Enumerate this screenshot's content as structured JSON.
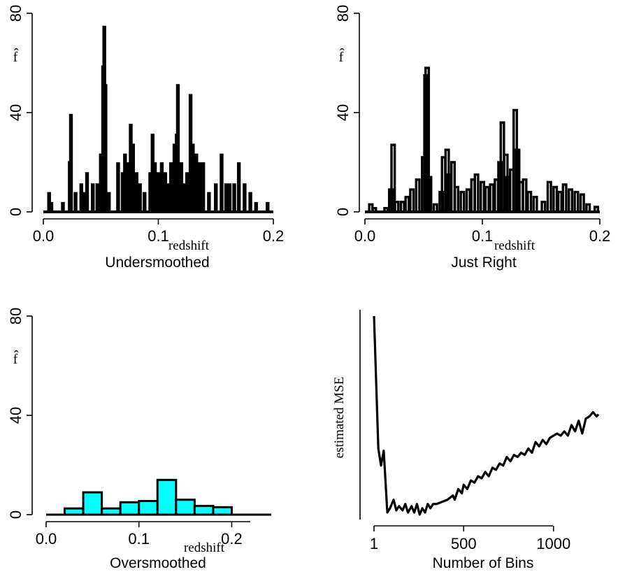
{
  "chart_data": [
    {
      "type": "histogram",
      "title": "Undersmoothed",
      "xlabel": "redshift",
      "ylabel": "f̂",
      "xlim": [
        0.0,
        0.2
      ],
      "ylim": [
        0,
        80
      ],
      "xticks": [
        "0.0",
        "0.1",
        "0.2"
      ],
      "yticks": [
        "0",
        "40",
        "80"
      ],
      "bins": 308,
      "peaks": [
        {
          "x": 0.005,
          "y": 7.5
        },
        {
          "x": 0.007,
          "y": 3.5
        },
        {
          "x": 0.017,
          "y": 3.5
        },
        {
          "x": 0.023,
          "y": 20
        },
        {
          "x": 0.024,
          "y": 39
        },
        {
          "x": 0.028,
          "y": 7.5
        },
        {
          "x": 0.033,
          "y": 11
        },
        {
          "x": 0.036,
          "y": 7.5
        },
        {
          "x": 0.038,
          "y": 15.5
        },
        {
          "x": 0.043,
          "y": 11
        },
        {
          "x": 0.047,
          "y": 11
        },
        {
          "x": 0.05,
          "y": 23
        },
        {
          "x": 0.052,
          "y": 58.5
        },
        {
          "x": 0.053,
          "y": 74.5
        },
        {
          "x": 0.054,
          "y": 51
        },
        {
          "x": 0.057,
          "y": 7.5
        },
        {
          "x": 0.065,
          "y": 19.5
        },
        {
          "x": 0.069,
          "y": 15.5
        },
        {
          "x": 0.071,
          "y": 23
        },
        {
          "x": 0.074,
          "y": 19.5
        },
        {
          "x": 0.076,
          "y": 35
        },
        {
          "x": 0.078,
          "y": 27
        },
        {
          "x": 0.081,
          "y": 15.5
        },
        {
          "x": 0.084,
          "y": 11
        },
        {
          "x": 0.088,
          "y": 7.5
        },
        {
          "x": 0.093,
          "y": 15.5
        },
        {
          "x": 0.095,
          "y": 31
        },
        {
          "x": 0.097,
          "y": 19.5
        },
        {
          "x": 0.1,
          "y": 15.5
        },
        {
          "x": 0.103,
          "y": 19.5
        },
        {
          "x": 0.106,
          "y": 15.5
        },
        {
          "x": 0.108,
          "y": 11
        },
        {
          "x": 0.111,
          "y": 19.5
        },
        {
          "x": 0.114,
          "y": 27
        },
        {
          "x": 0.116,
          "y": 31
        },
        {
          "x": 0.117,
          "y": 51
        },
        {
          "x": 0.12,
          "y": 19.5
        },
        {
          "x": 0.123,
          "y": 11
        },
        {
          "x": 0.125,
          "y": 15.5
        },
        {
          "x": 0.128,
          "y": 47
        },
        {
          "x": 0.13,
          "y": 27
        },
        {
          "x": 0.133,
          "y": 23
        },
        {
          "x": 0.136,
          "y": 19.5
        },
        {
          "x": 0.139,
          "y": 19.5
        },
        {
          "x": 0.144,
          "y": 7.5
        },
        {
          "x": 0.15,
          "y": 11
        },
        {
          "x": 0.155,
          "y": 23
        },
        {
          "x": 0.159,
          "y": 11
        },
        {
          "x": 0.162,
          "y": 11
        },
        {
          "x": 0.166,
          "y": 11
        },
        {
          "x": 0.17,
          "y": 19.5
        },
        {
          "x": 0.175,
          "y": 11
        },
        {
          "x": 0.18,
          "y": 7.5
        },
        {
          "x": 0.185,
          "y": 3.5
        },
        {
          "x": 0.195,
          "y": 3.5
        }
      ]
    },
    {
      "type": "histogram",
      "title": "Just Right",
      "xlabel": "redshift",
      "ylabel": "f̂",
      "xlim": [
        0.0,
        0.2
      ],
      "ylim": [
        0,
        80
      ],
      "xticks": [
        "0.0",
        "0.1",
        "0.2"
      ],
      "yticks": [
        "0",
        "40",
        "80"
      ],
      "bins": 73,
      "peaks": [
        {
          "x": 0.005,
          "y": 3
        },
        {
          "x": 0.008,
          "y": 1.5
        },
        {
          "x": 0.018,
          "y": 1.5
        },
        {
          "x": 0.022,
          "y": 9
        },
        {
          "x": 0.024,
          "y": 27
        },
        {
          "x": 0.027,
          "y": 4
        },
        {
          "x": 0.032,
          "y": 4
        },
        {
          "x": 0.036,
          "y": 6
        },
        {
          "x": 0.04,
          "y": 9
        },
        {
          "x": 0.045,
          "y": 13
        },
        {
          "x": 0.05,
          "y": 22
        },
        {
          "x": 0.052,
          "y": 55
        },
        {
          "x": 0.053,
          "y": 58
        },
        {
          "x": 0.055,
          "y": 14
        },
        {
          "x": 0.06,
          "y": 3
        },
        {
          "x": 0.065,
          "y": 8
        },
        {
          "x": 0.067,
          "y": 22
        },
        {
          "x": 0.07,
          "y": 25
        },
        {
          "x": 0.072,
          "y": 15
        },
        {
          "x": 0.075,
          "y": 20
        },
        {
          "x": 0.078,
          "y": 10
        },
        {
          "x": 0.083,
          "y": 8
        },
        {
          "x": 0.088,
          "y": 9
        },
        {
          "x": 0.092,
          "y": 13
        },
        {
          "x": 0.095,
          "y": 15
        },
        {
          "x": 0.1,
          "y": 12
        },
        {
          "x": 0.104,
          "y": 10
        },
        {
          "x": 0.108,
          "y": 11
        },
        {
          "x": 0.112,
          "y": 13
        },
        {
          "x": 0.115,
          "y": 20
        },
        {
          "x": 0.117,
          "y": 36
        },
        {
          "x": 0.12,
          "y": 23
        },
        {
          "x": 0.122,
          "y": 14
        },
        {
          "x": 0.125,
          "y": 17
        },
        {
          "x": 0.128,
          "y": 41
        },
        {
          "x": 0.13,
          "y": 25
        },
        {
          "x": 0.133,
          "y": 12
        },
        {
          "x": 0.136,
          "y": 13
        },
        {
          "x": 0.14,
          "y": 8
        },
        {
          "x": 0.145,
          "y": 6
        },
        {
          "x": 0.152,
          "y": 4
        },
        {
          "x": 0.157,
          "y": 12
        },
        {
          "x": 0.162,
          "y": 10
        },
        {
          "x": 0.166,
          "y": 8
        },
        {
          "x": 0.17,
          "y": 11
        },
        {
          "x": 0.175,
          "y": 9
        },
        {
          "x": 0.18,
          "y": 8
        },
        {
          "x": 0.185,
          "y": 7
        },
        {
          "x": 0.19,
          "y": 3
        },
        {
          "x": 0.197,
          "y": 2
        }
      ]
    },
    {
      "type": "bar",
      "title": "Oversmoothed",
      "xlabel": "redshift",
      "ylabel": "f̂",
      "xlim": [
        0.0,
        0.22
      ],
      "ylim": [
        0,
        80
      ],
      "xticks": [
        "0.0",
        "0.1",
        "0.2"
      ],
      "yticks": [
        "0",
        "40",
        "80"
      ],
      "bar_color": "#00ffff",
      "bin_edges": [
        0.0,
        0.02,
        0.04,
        0.06,
        0.08,
        0.1,
        0.12,
        0.14,
        0.16,
        0.18,
        0.2,
        0.22
      ],
      "values": [
        0,
        2.5,
        9,
        2.5,
        5,
        5.5,
        14,
        6,
        3.5,
        3,
        0
      ]
    },
    {
      "type": "line",
      "title": "",
      "xlabel": "Number of Bins",
      "ylabel": "estimated MSE",
      "xticks": [
        "1",
        "500",
        "1000"
      ],
      "xlim": [
        1,
        1250
      ],
      "series": [
        {
          "x": [
            1,
            25,
            40,
            55,
            75,
            90,
            110,
            125,
            140,
            160,
            175,
            190,
            210,
            225,
            240,
            255,
            270,
            285,
            300,
            315,
            330,
            350,
            380,
            410,
            440,
            450,
            470,
            490,
            500,
            520,
            540,
            560,
            580,
            600,
            620,
            640,
            660,
            680,
            700,
            720,
            740,
            760,
            780,
            800,
            820,
            840,
            860,
            880,
            900,
            920,
            940,
            960,
            980,
            1000,
            1020,
            1040,
            1060,
            1080,
            1100,
            1120,
            1140,
            1160,
            1180,
            1200,
            1220,
            1240,
            1250
          ],
          "y": [
            100,
            38,
            30,
            37,
            8,
            10,
            14,
            9,
            11,
            9,
            12,
            8,
            11,
            8,
            12,
            7,
            10,
            8,
            12,
            10,
            12,
            12,
            13,
            14,
            16,
            14,
            19,
            17,
            21,
            19,
            23,
            22,
            25,
            24,
            27,
            25,
            29,
            28,
            31,
            30,
            34,
            32,
            35,
            34,
            36,
            35,
            38,
            36,
            41,
            39,
            42,
            40,
            43,
            44,
            45,
            44,
            46,
            44,
            49,
            46,
            51,
            45,
            52,
            53,
            55,
            53,
            54
          ]
        }
      ]
    }
  ]
}
